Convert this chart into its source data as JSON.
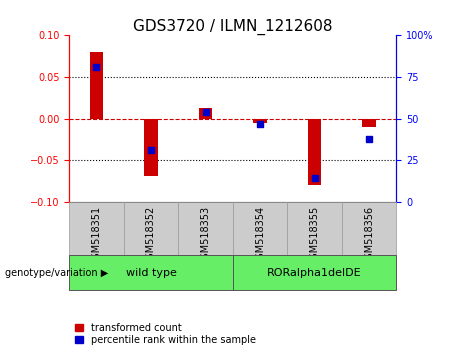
{
  "title": "GDS3720 / ILMN_1212608",
  "samples": [
    "GSM518351",
    "GSM518352",
    "GSM518353",
    "GSM518354",
    "GSM518355",
    "GSM518356"
  ],
  "red_bars": [
    0.08,
    -0.069,
    0.013,
    -0.005,
    -0.08,
    -0.01
  ],
  "blue_pct": [
    81,
    31,
    54,
    47,
    14,
    38
  ],
  "ylim_left": [
    -0.1,
    0.1
  ],
  "ylim_right": [
    0,
    100
  ],
  "yticks_left": [
    -0.1,
    -0.05,
    0,
    0.05,
    0.1
  ],
  "yticks_right": [
    0,
    25,
    50,
    75,
    100
  ],
  "bar_color": "#CC0000",
  "square_color": "#0000CC",
  "bar_width": 0.25,
  "background_xticklabels": "#CCCCCC",
  "background_groups": "#66EE66",
  "legend_red_label": "transformed count",
  "legend_blue_label": "percentile rank within the sample",
  "title_fontsize": 11,
  "tick_fontsize": 7,
  "group_label_fontsize": 8,
  "sample_label_fontsize": 7
}
